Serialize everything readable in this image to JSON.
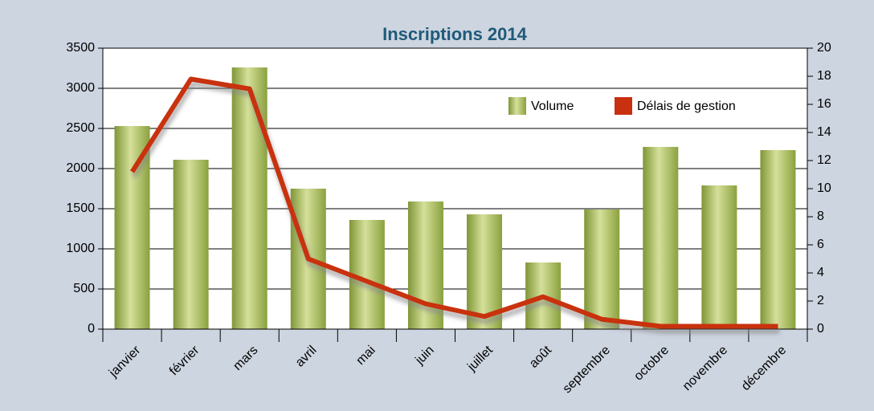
{
  "chart_data": {
    "type": "bar-line",
    "title": "Inscriptions 2014",
    "categories": [
      "janvier",
      "février",
      "mars",
      "avril",
      "mai",
      "juin",
      "juillet",
      "août",
      "septembre",
      "octobre",
      "novembre",
      "décembre"
    ],
    "series": [
      {
        "name": "Volume",
        "type": "bar",
        "color": "#9cb04a",
        "values": [
          2530,
          2110,
          3260,
          1750,
          1360,
          1590,
          1430,
          830,
          1490,
          2270,
          1790,
          2230
        ]
      },
      {
        "name": "Délais de gestion",
        "type": "line",
        "axis": "y2",
        "color": "#c8300f",
        "values": [
          11.2,
          17.8,
          17.1,
          5.0,
          3.4,
          1.8,
          0.9,
          2.3,
          0.7,
          0.2,
          0.2,
          0.2
        ]
      }
    ],
    "ylim": [
      0,
      3500
    ],
    "yticks": [
      0,
      500,
      1000,
      1500,
      2000,
      2500,
      3000,
      3500
    ],
    "y2lim": [
      0,
      20
    ],
    "y2ticks": [
      0,
      2,
      4,
      6,
      8,
      10,
      12,
      14,
      16,
      18,
      20
    ],
    "grid": true,
    "legend": "top-right"
  }
}
